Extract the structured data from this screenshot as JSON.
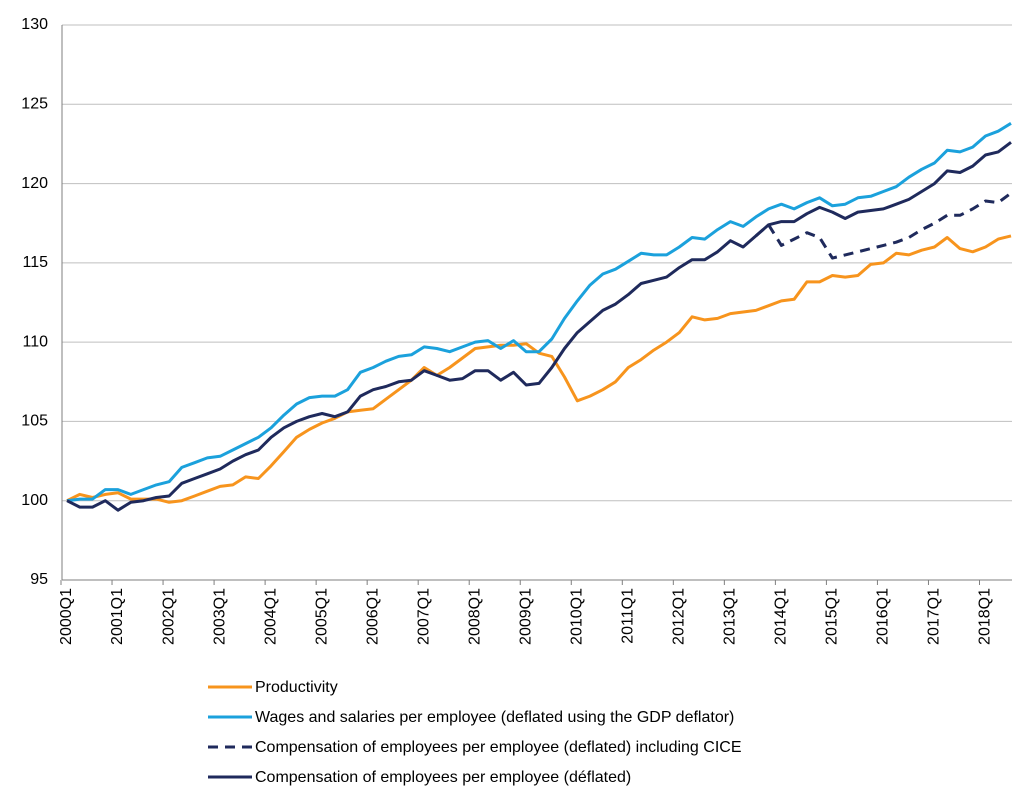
{
  "chart_data": {
    "type": "line",
    "categories": [
      "2000Q1",
      null,
      null,
      null,
      "2001Q1",
      null,
      null,
      null,
      "2002Q1",
      null,
      null,
      null,
      "2003Q1",
      null,
      null,
      null,
      "2004Q1",
      null,
      null,
      null,
      "2005Q1",
      null,
      null,
      null,
      "2006Q1",
      null,
      null,
      null,
      "2007Q1",
      null,
      null,
      null,
      "2008Q1",
      null,
      null,
      null,
      "2009Q1",
      null,
      null,
      null,
      "2010Q1",
      null,
      null,
      null,
      "2011Q1",
      null,
      null,
      null,
      "2012Q1",
      null,
      null,
      null,
      "2013Q1",
      null,
      null,
      null,
      "2014Q1",
      null,
      null,
      null,
      "2015Q1",
      null,
      null,
      null,
      "2016Q1",
      null,
      null,
      null,
      "2017Q1",
      null,
      null,
      null,
      "2018Q1",
      null,
      null
    ],
    "series": [
      {
        "name": "Productivity",
        "color": "#f7941d",
        "dashed": false,
        "values": [
          100,
          100.4,
          100.2,
          100.4,
          100.5,
          100.1,
          100.1,
          100.1,
          99.9,
          100.0,
          100.3,
          100.6,
          100.9,
          101.0,
          101.5,
          101.4,
          102.2,
          103.1,
          104.0,
          104.5,
          104.9,
          105.2,
          105.6,
          105.7,
          105.8,
          106.4,
          107.0,
          107.6,
          108.4,
          107.9,
          108.4,
          109.0,
          109.6,
          109.7,
          109.8,
          109.8,
          109.9,
          109.3,
          109.1,
          107.8,
          106.3,
          106.6,
          107.0,
          107.5,
          108.4,
          108.9,
          109.5,
          110.0,
          110.6,
          111.6,
          111.4,
          111.5,
          111.8,
          111.9,
          112.0,
          112.3,
          112.6,
          112.7,
          113.8,
          113.8,
          114.2,
          114.1,
          114.2,
          114.9,
          115.0,
          115.6,
          115.5,
          115.8,
          116.0,
          116.6,
          115.9,
          115.7,
          116.0,
          116.5,
          116.7
        ]
      },
      {
        "name": "Wages and salaries per employee (deflated using the GDP deflator)",
        "color": "#1ba1dc",
        "dashed": false,
        "values": [
          100,
          100.1,
          100.1,
          100.7,
          100.7,
          100.4,
          100.7,
          101.0,
          101.2,
          102.1,
          102.4,
          102.7,
          102.8,
          103.2,
          103.6,
          104.0,
          104.6,
          105.4,
          106.1,
          106.5,
          106.6,
          106.6,
          107.0,
          108.1,
          108.4,
          108.8,
          109.1,
          109.2,
          109.7,
          109.6,
          109.4,
          109.7,
          110.0,
          110.1,
          109.6,
          110.1,
          109.4,
          109.4,
          110.2,
          111.5,
          112.6,
          113.6,
          114.3,
          114.6,
          115.1,
          115.6,
          115.5,
          115.5,
          116.0,
          116.6,
          116.5,
          117.1,
          117.6,
          117.3,
          117.9,
          118.4,
          118.7,
          118.4,
          118.8,
          119.1,
          118.6,
          118.7,
          119.1,
          119.2,
          119.5,
          119.8,
          120.4,
          120.9,
          121.3,
          122.1,
          122.0,
          122.3,
          123.0,
          123.3,
          123.8
        ]
      },
      {
        "name": "Compensation of employees per employee (deflated) including CICE",
        "color": "#1f2a5c",
        "dashed": true,
        "values": [
          null,
          null,
          null,
          null,
          null,
          null,
          null,
          null,
          null,
          null,
          null,
          null,
          null,
          null,
          null,
          null,
          null,
          null,
          null,
          null,
          null,
          null,
          null,
          null,
          null,
          null,
          null,
          null,
          null,
          null,
          null,
          null,
          null,
          null,
          null,
          null,
          null,
          null,
          null,
          null,
          null,
          null,
          null,
          null,
          null,
          null,
          null,
          null,
          null,
          null,
          null,
          null,
          null,
          null,
          116.7,
          117.4,
          116.1,
          116.5,
          116.9,
          116.6,
          115.3,
          115.5,
          115.7,
          115.9,
          116.1,
          116.3,
          116.6,
          117.1,
          117.5,
          118.0,
          118.0,
          118.4,
          118.9,
          118.8,
          119.4
        ]
      },
      {
        "name": "Compensation of employees per employee (déflated)",
        "color": "#1f2a5c",
        "dashed": false,
        "values": [
          100,
          99.6,
          99.6,
          100.0,
          99.4,
          99.9,
          100.0,
          100.2,
          100.3,
          101.1,
          101.4,
          101.7,
          102.0,
          102.5,
          102.9,
          103.2,
          104.0,
          104.6,
          105.0,
          105.3,
          105.5,
          105.3,
          105.6,
          106.6,
          107.0,
          107.2,
          107.5,
          107.6,
          108.2,
          107.9,
          107.6,
          107.7,
          108.2,
          108.2,
          107.6,
          108.1,
          107.3,
          107.4,
          108.4,
          109.6,
          110.6,
          111.3,
          112.0,
          112.4,
          113.0,
          113.7,
          113.9,
          114.1,
          114.7,
          115.2,
          115.2,
          115.7,
          116.4,
          116.0,
          116.7,
          117.4,
          117.6,
          117.6,
          118.1,
          118.5,
          118.2,
          117.8,
          118.2,
          118.3,
          118.4,
          118.7,
          119.0,
          119.5,
          120.0,
          120.8,
          120.7,
          121.1,
          121.8,
          122.0,
          122.6
        ]
      }
    ],
    "ylim": [
      95,
      130
    ],
    "yticks": [
      95,
      100,
      105,
      110,
      115,
      120,
      125,
      130
    ],
    "grid": true,
    "legend": "bottom"
  }
}
